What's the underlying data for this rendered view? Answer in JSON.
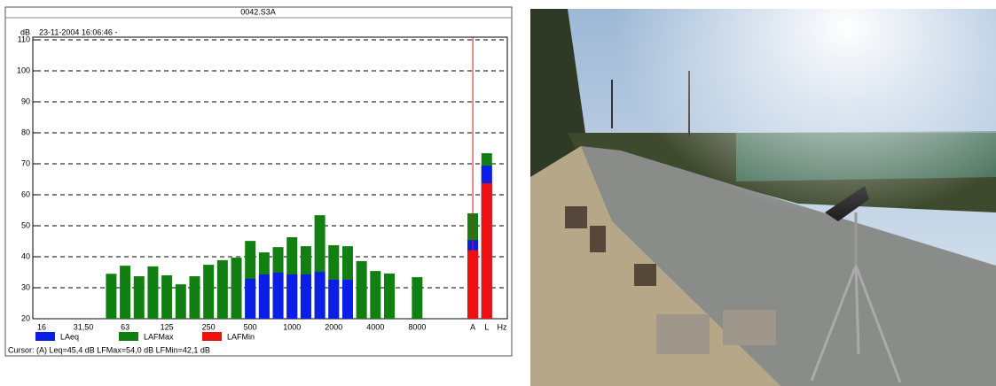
{
  "chart_data": {
    "type": "bar",
    "title": "0042.S3A",
    "subtitle": "23-11-2004 16:06:46 -",
    "ylabel": "dB",
    "x_unit": "Hz",
    "categories": [
      "16",
      null,
      null,
      "31,50",
      null,
      null,
      "63",
      null,
      null,
      "125",
      null,
      null,
      "250",
      null,
      null,
      "500",
      null,
      null,
      "1000",
      null,
      null,
      "2000",
      null,
      null,
      "4000",
      null,
      null,
      "8000",
      null,
      null,
      null,
      "A",
      "L"
    ],
    "series": [
      {
        "name": "LAFMax",
        "color": "#117f11",
        "values": [
          null,
          null,
          null,
          null,
          null,
          34.5,
          37.1,
          33.7,
          36.9,
          34.0,
          31.1,
          33.7,
          37.4,
          38.9,
          39.7,
          45.1,
          41.4,
          43.1,
          46.3,
          43.4,
          53.4,
          43.7,
          43.4,
          38.6,
          35.4,
          34.6,
          null,
          33.4,
          null,
          null,
          null,
          54.0,
          73.4
        ]
      },
      {
        "name": "LAeq",
        "color": "#0a1ee6",
        "values": [
          null,
          null,
          null,
          null,
          null,
          null,
          null,
          null,
          null,
          null,
          null,
          null,
          null,
          null,
          null,
          32.9,
          34.3,
          34.9,
          34.3,
          34.3,
          35.1,
          32.6,
          32.6,
          null,
          null,
          null,
          null,
          null,
          null,
          null,
          null,
          45.4,
          69.4
        ]
      },
      {
        "name": "LAFMin",
        "color": "#ee1111",
        "values": [
          null,
          null,
          null,
          null,
          null,
          null,
          null,
          null,
          null,
          null,
          null,
          null,
          null,
          null,
          null,
          null,
          null,
          null,
          null,
          null,
          null,
          null,
          null,
          null,
          null,
          null,
          null,
          null,
          null,
          null,
          null,
          42.1,
          63.7
        ]
      }
    ],
    "legend_order": [
      1,
      0,
      2
    ],
    "ylim": [
      20,
      110
    ],
    "yticks": [
      20,
      30,
      40,
      50,
      60,
      70,
      80,
      90,
      100,
      110
    ],
    "grid": true,
    "cursor_text": "Cursor: (A)  Leq=45,4 dB  LFMax=54,0 dB  LFMin=42,1 dB",
    "cursor_color": "#ee1111"
  }
}
